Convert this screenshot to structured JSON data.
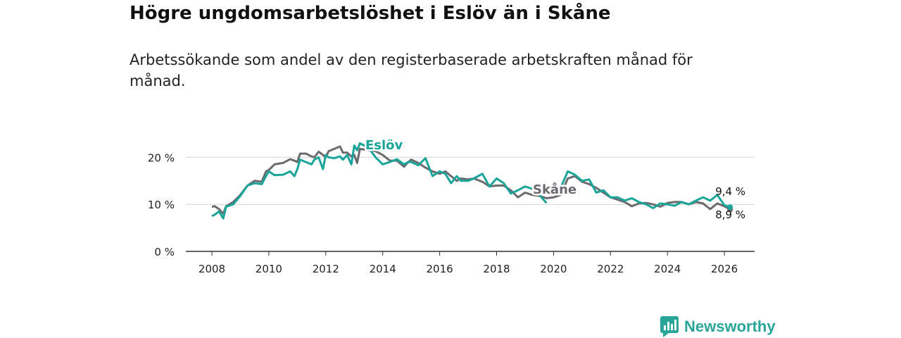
{
  "header": {
    "title": "Högre ungdomsarbetslöshet i Eslöv än i Skåne",
    "subtitle": "Arbetssökande som andel av den registerbaserade arbetskraften månad för månad."
  },
  "brand": {
    "name": "Newsworthy",
    "color": "#2aa59a"
  },
  "chart_data": {
    "type": "line",
    "title": "Högre ungdomsarbetslöshet i Eslöv än i Skåne",
    "xlabel": "",
    "ylabel": "",
    "xlim": [
      2007,
      2027
    ],
    "ylim": [
      0,
      25
    ],
    "x_ticks": [
      2008,
      2010,
      2012,
      2014,
      2016,
      2018,
      2020,
      2022,
      2024,
      2026
    ],
    "x_tick_labels": [
      "2008",
      "2010",
      "2012",
      "2014",
      "2016",
      "2018",
      "2020",
      "2022",
      "2024",
      "2026"
    ],
    "y_ticks": [
      0,
      10,
      20
    ],
    "y_tick_labels": [
      "0 %",
      "10 %",
      "20 %"
    ],
    "grid": true,
    "series": [
      {
        "name": "Skåne",
        "color": "#6b6a6e",
        "end_label": "8,9 %",
        "points": [
          [
            2008.0,
            9.5
          ],
          [
            2008.1,
            9.6
          ],
          [
            2008.25,
            9.0
          ],
          [
            2008.4,
            8.0
          ],
          [
            2008.5,
            9.6
          ],
          [
            2008.75,
            10.5
          ],
          [
            2009.0,
            12.0
          ],
          [
            2009.25,
            14.0
          ],
          [
            2009.5,
            15.0
          ],
          [
            2009.75,
            14.8
          ],
          [
            2009.9,
            17.0
          ],
          [
            2010.0,
            17.3
          ],
          [
            2010.2,
            18.5
          ],
          [
            2010.5,
            18.8
          ],
          [
            2010.75,
            19.6
          ],
          [
            2010.9,
            19.3
          ],
          [
            2011.0,
            19.0
          ],
          [
            2011.1,
            20.8
          ],
          [
            2011.3,
            20.8
          ],
          [
            2011.5,
            20.2
          ],
          [
            2011.6,
            20.0
          ],
          [
            2011.75,
            21.2
          ],
          [
            2011.9,
            20.5
          ],
          [
            2012.0,
            20.0
          ],
          [
            2012.1,
            21.3
          ],
          [
            2012.3,
            21.8
          ],
          [
            2012.5,
            22.3
          ],
          [
            2012.6,
            21.0
          ],
          [
            2012.75,
            21.0
          ],
          [
            2012.9,
            20.2
          ],
          [
            2013.0,
            20.5
          ],
          [
            2013.1,
            18.8
          ],
          [
            2013.2,
            21.8
          ],
          [
            2013.5,
            21.5
          ],
          [
            2013.75,
            21.3
          ],
          [
            2014.0,
            20.5
          ],
          [
            2014.25,
            19.3
          ],
          [
            2014.5,
            19.3
          ],
          [
            2014.75,
            18.0
          ],
          [
            2014.9,
            19.0
          ],
          [
            2015.0,
            19.5
          ],
          [
            2015.25,
            18.8
          ],
          [
            2015.5,
            17.8
          ],
          [
            2015.75,
            17.0
          ],
          [
            2016.0,
            16.5
          ],
          [
            2016.2,
            17.0
          ],
          [
            2016.4,
            16.0
          ],
          [
            2016.6,
            15.0
          ],
          [
            2016.75,
            15.5
          ],
          [
            2017.0,
            15.3
          ],
          [
            2017.2,
            15.5
          ],
          [
            2017.5,
            14.8
          ],
          [
            2017.75,
            13.8
          ],
          [
            2018.0,
            14.0
          ],
          [
            2018.25,
            14.0
          ],
          [
            2018.5,
            13.0
          ],
          [
            2018.75,
            11.5
          ],
          [
            2019.0,
            12.5
          ],
          [
            2019.25,
            12.0
          ],
          [
            2019.5,
            11.8
          ],
          [
            2019.75,
            11.3
          ],
          [
            2020.0,
            11.5
          ],
          [
            2020.25,
            12.0
          ],
          [
            2020.5,
            15.5
          ],
          [
            2020.75,
            16.0
          ],
          [
            2021.0,
            14.8
          ],
          [
            2021.25,
            14.3
          ],
          [
            2021.5,
            13.5
          ],
          [
            2021.75,
            12.5
          ],
          [
            2022.0,
            11.5
          ],
          [
            2022.25,
            11.0
          ],
          [
            2022.5,
            10.5
          ],
          [
            2022.75,
            9.6
          ],
          [
            2023.0,
            10.2
          ],
          [
            2023.25,
            10.3
          ],
          [
            2023.5,
            10.0
          ],
          [
            2023.75,
            9.5
          ],
          [
            2024.0,
            10.3
          ],
          [
            2024.25,
            10.5
          ],
          [
            2024.5,
            10.5
          ],
          [
            2024.75,
            10.0
          ],
          [
            2025.0,
            10.5
          ],
          [
            2025.25,
            10.2
          ],
          [
            2025.5,
            9.0
          ],
          [
            2025.75,
            10.2
          ],
          [
            2026.0,
            9.6
          ],
          [
            2026.2,
            8.9
          ]
        ]
      },
      {
        "name": "Eslöv",
        "color": "#1aa59a",
        "end_label": "9,4 %",
        "points": [
          [
            2008.0,
            7.5
          ],
          [
            2008.1,
            7.8
          ],
          [
            2008.25,
            8.5
          ],
          [
            2008.4,
            7.0
          ],
          [
            2008.5,
            9.5
          ],
          [
            2008.75,
            10.0
          ],
          [
            2009.0,
            11.8
          ],
          [
            2009.25,
            14.0
          ],
          [
            2009.5,
            14.5
          ],
          [
            2009.75,
            14.3
          ],
          [
            2009.9,
            16.0
          ],
          [
            2010.0,
            17.0
          ],
          [
            2010.2,
            16.2
          ],
          [
            2010.5,
            16.3
          ],
          [
            2010.75,
            17.0
          ],
          [
            2010.9,
            16.0
          ],
          [
            2011.0,
            17.5
          ],
          [
            2011.1,
            19.5
          ],
          [
            2011.3,
            19.0
          ],
          [
            2011.5,
            18.5
          ],
          [
            2011.6,
            19.5
          ],
          [
            2011.75,
            20.0
          ],
          [
            2011.9,
            17.5
          ],
          [
            2012.0,
            20.5
          ],
          [
            2012.1,
            20.0
          ],
          [
            2012.3,
            19.8
          ],
          [
            2012.5,
            20.2
          ],
          [
            2012.6,
            19.5
          ],
          [
            2012.75,
            20.5
          ],
          [
            2012.9,
            18.5
          ],
          [
            2013.0,
            22.5
          ],
          [
            2013.1,
            21.5
          ],
          [
            2013.2,
            23.0
          ],
          [
            2013.5,
            22.0
          ],
          [
            2013.75,
            20.0
          ],
          [
            2014.0,
            18.5
          ],
          [
            2014.25,
            19.0
          ],
          [
            2014.5,
            19.6
          ],
          [
            2014.75,
            18.5
          ],
          [
            2014.9,
            19.0
          ],
          [
            2015.0,
            19.0
          ],
          [
            2015.25,
            18.3
          ],
          [
            2015.5,
            19.8
          ],
          [
            2015.75,
            16.0
          ],
          [
            2016.0,
            17.0
          ],
          [
            2016.2,
            16.5
          ],
          [
            2016.4,
            14.5
          ],
          [
            2016.6,
            16.0
          ],
          [
            2016.75,
            15.0
          ],
          [
            2017.0,
            15.0
          ],
          [
            2017.2,
            15.5
          ],
          [
            2017.5,
            16.5
          ],
          [
            2017.75,
            13.8
          ],
          [
            2018.0,
            15.5
          ],
          [
            2018.25,
            14.5
          ],
          [
            2018.5,
            12.3
          ],
          [
            2018.75,
            13.0
          ],
          [
            2019.0,
            13.8
          ],
          [
            2019.25,
            13.3
          ],
          [
            2019.5,
            12.0
          ],
          [
            2019.75,
            10.3
          ],
          [
            2020.0,
            null
          ],
          [
            2020.25,
            13.5
          ],
          [
            2020.5,
            17.0
          ],
          [
            2020.75,
            16.3
          ],
          [
            2021.0,
            15.0
          ],
          [
            2021.25,
            15.3
          ],
          [
            2021.5,
            12.5
          ],
          [
            2021.75,
            13.0
          ],
          [
            2022.0,
            11.5
          ],
          [
            2022.25,
            11.5
          ],
          [
            2022.5,
            10.8
          ],
          [
            2022.75,
            11.3
          ],
          [
            2023.0,
            10.5
          ],
          [
            2023.25,
            10.0
          ],
          [
            2023.5,
            9.2
          ],
          [
            2023.75,
            10.2
          ],
          [
            2024.0,
            10.0
          ],
          [
            2024.25,
            9.7
          ],
          [
            2024.5,
            10.5
          ],
          [
            2024.75,
            10.0
          ],
          [
            2025.0,
            10.8
          ],
          [
            2025.25,
            11.5
          ],
          [
            2025.5,
            10.8
          ],
          [
            2025.75,
            12.0
          ],
          [
            2026.0,
            9.8
          ],
          [
            2026.2,
            9.4
          ]
        ]
      }
    ],
    "annotations": [
      {
        "text": "Eslöv",
        "series": "Eslöv",
        "at_x": 2013.4
      },
      {
        "text": "Skåne",
        "series": "Skåne",
        "at_x": 2019.4
      }
    ]
  }
}
